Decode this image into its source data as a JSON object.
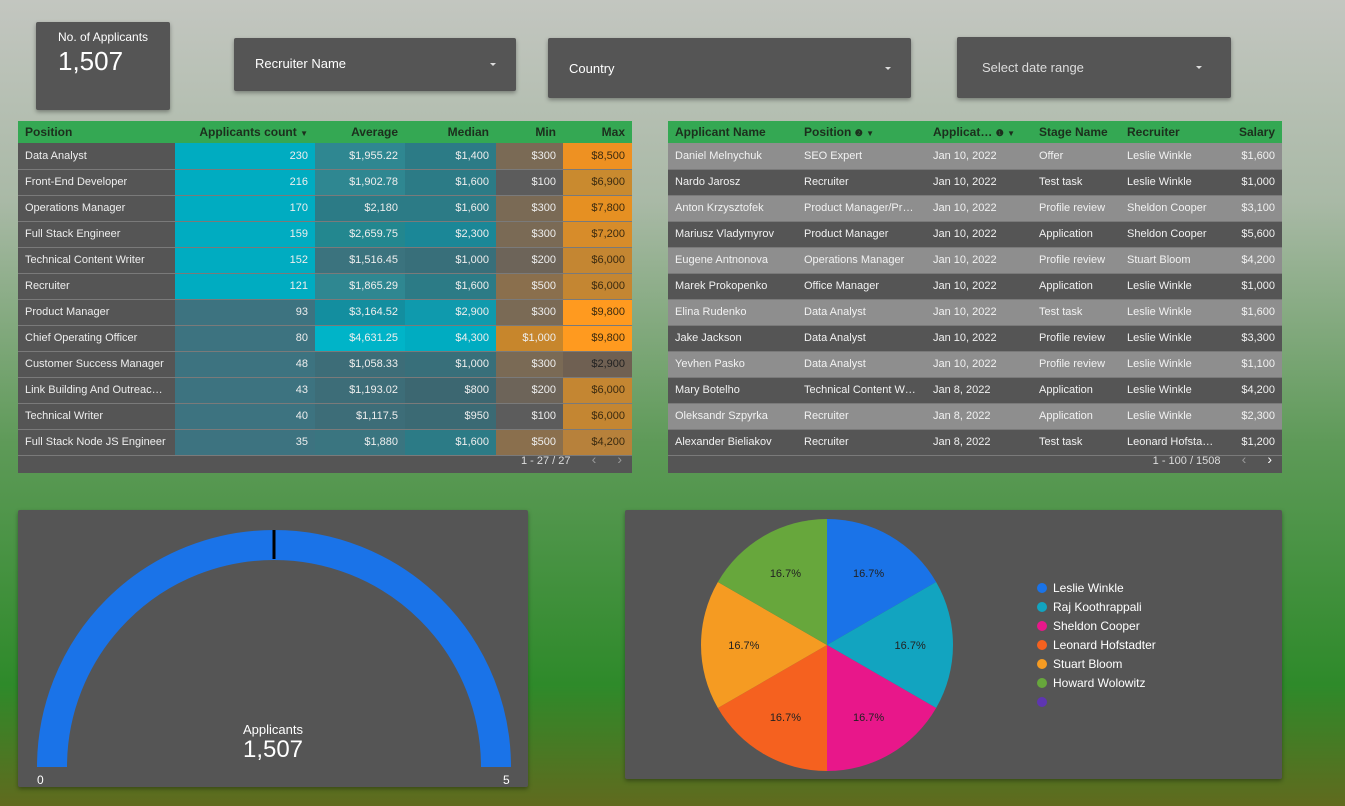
{
  "scorecard": {
    "label": "No. of Applicants",
    "value": "1,507"
  },
  "filters": {
    "recruiter": "Recruiter Name",
    "country": "Country",
    "date": "Select date range"
  },
  "positions_table": {
    "headers": [
      "Position",
      "Applicants count",
      "Average",
      "Median",
      "Min",
      "Max"
    ],
    "rows": [
      [
        "Data Analyst",
        "230",
        "$1,955.22",
        "$1,400",
        "$300",
        "$8,500"
      ],
      [
        "Front-End Developer",
        "216",
        "$1,902.78",
        "$1,600",
        "$100",
        "$6,900"
      ],
      [
        "Operations Manager",
        "170",
        "$2,180",
        "$1,600",
        "$300",
        "$7,800"
      ],
      [
        "Full Stack Engineer",
        "159",
        "$2,659.75",
        "$2,300",
        "$300",
        "$7,200"
      ],
      [
        "Technical Content Writer",
        "152",
        "$1,516.45",
        "$1,000",
        "$200",
        "$6,000"
      ],
      [
        "Recruiter",
        "121",
        "$1,865.29",
        "$1,600",
        "$500",
        "$6,000"
      ],
      [
        "Product Manager",
        "93",
        "$3,164.52",
        "$2,900",
        "$300",
        "$9,800"
      ],
      [
        "Chief Operating Officer",
        "80",
        "$4,631.25",
        "$4,300",
        "$1,000",
        "$9,800"
      ],
      [
        "Customer Success Manager",
        "48",
        "$1,058.33",
        "$1,000",
        "$300",
        "$2,900"
      ],
      [
        "Link Building And Outreach Manager",
        "43",
        "$1,193.02",
        "$800",
        "$200",
        "$6,000"
      ],
      [
        "Technical Writer",
        "40",
        "$1,117.5",
        "$950",
        "$100",
        "$6,000"
      ],
      [
        "Full Stack Node JS Engineer",
        "35",
        "$1,880",
        "$1,600",
        "$500",
        "$4,200"
      ]
    ],
    "pager": "1 - 27 / 27"
  },
  "applicants_table": {
    "headers": [
      "Applicant Name",
      "Position",
      "Applicat…",
      "Stage Name",
      "Recruiter",
      "Salary"
    ],
    "rows": [
      [
        "Daniel Melnychuk",
        "SEO Expert",
        "Jan 10, 2022",
        "Offer",
        "Leslie Winkle",
        "$1,600"
      ],
      [
        "Nardo Jarosz",
        "Recruiter",
        "Jan 10, 2022",
        "Test task",
        "Leslie Winkle",
        "$1,000"
      ],
      [
        "Anton Krzysztofek",
        "Product Manager/Project Manager",
        "Jan 10, 2022",
        "Profile review",
        "Sheldon Cooper",
        "$3,100"
      ],
      [
        "Mariusz Vladymyrov",
        "Product Manager",
        "Jan 10, 2022",
        "Application",
        "Sheldon Cooper",
        "$5,600"
      ],
      [
        "Eugene Antnonova",
        "Operations Manager",
        "Jan 10, 2022",
        "Profile review",
        "Stuart Bloom",
        "$4,200"
      ],
      [
        "Marek Prokopenko",
        "Office Manager",
        "Jan 10, 2022",
        "Application",
        "Leslie Winkle",
        "$1,000"
      ],
      [
        "Elina Rudenko",
        "Data Analyst",
        "Jan 10, 2022",
        "Test task",
        "Leslie Winkle",
        "$1,600"
      ],
      [
        "Jake Jackson",
        "Data Analyst",
        "Jan 10, 2022",
        "Profile review",
        "Leslie Winkle",
        "$3,300"
      ],
      [
        "Yevhen Pasko",
        "Data Analyst",
        "Jan 10, 2022",
        "Profile review",
        "Leslie Winkle",
        "$1,100"
      ],
      [
        "Mary Botelho",
        "Technical Content Writer",
        "Jan 8, 2022",
        "Application",
        "Leslie Winkle",
        "$4,200"
      ],
      [
        "Oleksandr Szpyrka",
        "Recruiter",
        "Jan 8, 2022",
        "Application",
        "Leslie Winkle",
        "$2,300"
      ],
      [
        "Alexander Bieliakov",
        "Recruiter",
        "Jan 8, 2022",
        "Test task",
        "Leonard Hofstadter",
        "$1,200"
      ]
    ],
    "pager": "1 - 100 / 1508"
  },
  "gauge": {
    "label": "Applicants",
    "value": "1,507",
    "min_label": "0",
    "max_label": "5",
    "color": "#1a73e8"
  },
  "pie": {
    "slices": [
      {
        "name": "Leslie Winkle",
        "pct": "16.7%",
        "color": "#1a73e8"
      },
      {
        "name": "Raj Koothrappali",
        "pct": "16.7%",
        "color": "#12a4c0"
      },
      {
        "name": "Sheldon Cooper",
        "pct": "16.7%",
        "color": "#e8178a"
      },
      {
        "name": "Leonard Hofstadter",
        "pct": "16.7%",
        "color": "#f5611f"
      },
      {
        "name": "Stuart Bloom",
        "pct": "16.7%",
        "color": "#f59b22"
      },
      {
        "name": "Howard Wolowitz",
        "pct": "16.7%",
        "color": "#67a73c"
      }
    ],
    "extra_legend_color": "#5e35b1"
  }
}
